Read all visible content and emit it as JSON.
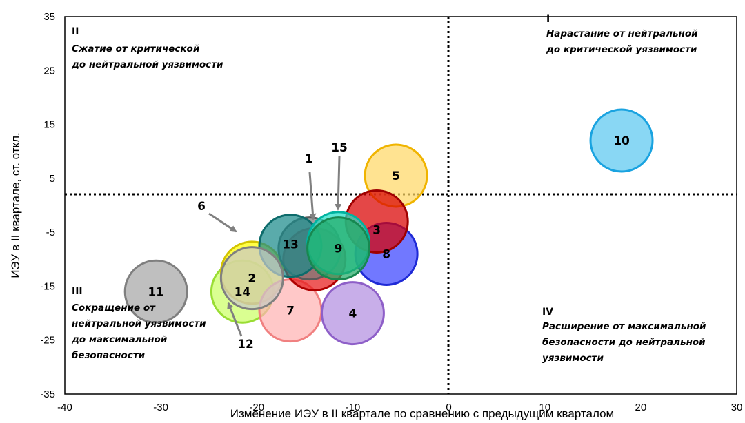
{
  "chart_data": {
    "type": "scatter",
    "title": "",
    "xlabel": "Изменение  ИЭУ в II квартале по сравнению с предыдущим кварталом",
    "ylabel": "ИЭУ в II  квартале, ст. откл.",
    "xlim": [
      -40,
      30
    ],
    "ylim": [
      -35,
      35
    ],
    "x_ticks": [
      -40,
      -30,
      -20,
      -10,
      0,
      10,
      20,
      30
    ],
    "y_ticks": [
      35,
      25,
      15,
      5,
      -5,
      -15,
      -25,
      -35
    ],
    "grid": false,
    "reference_lines": {
      "x": 0,
      "y": 0,
      "style": "dotted"
    },
    "points": [
      {
        "label": "11",
        "x": -30.5,
        "y": -16,
        "color": "#a6a6a6",
        "stroke": "#7f7f7f"
      },
      {
        "label": "14",
        "x": -21.5,
        "y": -16,
        "color": "#ccff66",
        "stroke": "#99dd33"
      },
      {
        "label": "6",
        "x": -20.5,
        "y": -12.5,
        "color": "#ffff00",
        "stroke": "#d4c400"
      },
      {
        "label": "7",
        "x": -16.5,
        "y": -19.5,
        "color": "#ffb3b3",
        "stroke": "#f08080"
      },
      {
        "label": "4",
        "x": -10,
        "y": -20,
        "color": "#b38fe0",
        "stroke": "#8e5fc8"
      },
      {
        "label": "8",
        "x": -6.5,
        "y": -9,
        "color": "#3a44ff",
        "stroke": "#1f2ad6"
      },
      {
        "label": "5",
        "x": -5.5,
        "y": 5.5,
        "color": "#ffd866",
        "stroke": "#f0b400"
      },
      {
        "label": "3",
        "x": -7.5,
        "y": -3,
        "color": "#d90000",
        "stroke": "#a00000"
      },
      {
        "label": "12",
        "x": -14,
        "y": -10,
        "color": "#e61a1a",
        "stroke": "#b00000"
      },
      {
        "label": "1",
        "x": -14.5,
        "y": -8,
        "color": "#7a7a7a",
        "stroke": "#5a5a5a"
      },
      {
        "label": "13",
        "x": -16.5,
        "y": -7.5,
        "color": "#1a8a8a",
        "stroke": "#0d6b6b"
      },
      {
        "label": "15",
        "x": -11.5,
        "y": -7,
        "color": "#22e0c8",
        "stroke": "#00b3a0"
      },
      {
        "label": "9",
        "x": -11.5,
        "y": -8,
        "color": "#22aa66",
        "stroke": "#178850"
      },
      {
        "label": "2",
        "x": -20.5,
        "y": -13.5,
        "color": "#c9c9c9",
        "stroke": "#808080"
      },
      {
        "label": "10",
        "x": 18,
        "y": 12,
        "color": "#5bc8f0",
        "stroke": "#1aa3e0"
      }
    ],
    "callouts": [
      {
        "label": "6",
        "target": "6"
      },
      {
        "label": "1",
        "target": "1"
      },
      {
        "label": "15",
        "target": "15"
      },
      {
        "label": "12",
        "target": "12"
      }
    ],
    "quadrants": [
      {
        "num": "I",
        "lines": [
          "Нарастание от нейтральной",
          "до критической  уязвимости"
        ]
      },
      {
        "num": "II",
        "lines": [
          "Сжатие от критической",
          "до нейтральной уязвимости"
        ]
      },
      {
        "num": "III",
        "lines": [
          "Сокращение от",
          "нейтральной уязвимости",
          "до максимальной",
          "безопасности"
        ]
      },
      {
        "num": "IV",
        "lines": [
          "Расширение от максимальной",
          "безопасности до нейтральной",
          "уязвимости"
        ]
      }
    ]
  }
}
